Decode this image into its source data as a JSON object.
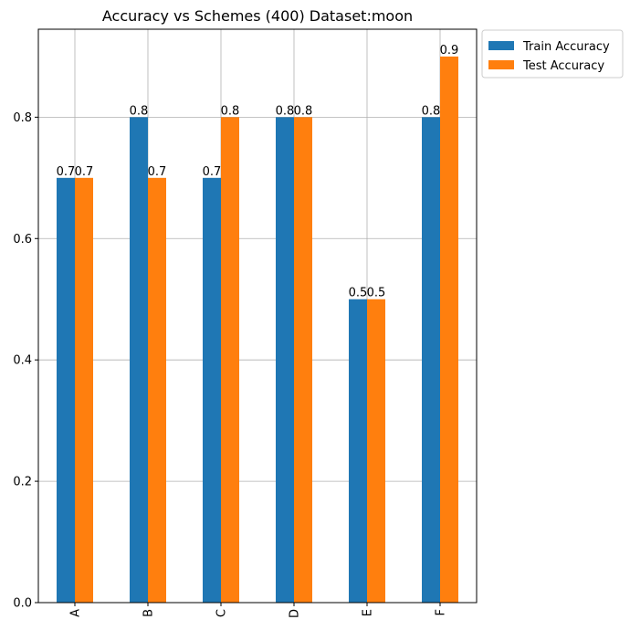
{
  "chart_data": {
    "type": "bar",
    "title": "Accuracy vs Schemes (400) Dataset:moon",
    "xlabel": "",
    "ylabel": "",
    "categories": [
      "A",
      "B",
      "C",
      "D",
      "E",
      "F"
    ],
    "series": [
      {
        "name": "Train Accuracy",
        "color": "#1f77b4",
        "values": [
          0.7,
          0.8,
          0.7,
          0.8,
          0.5,
          0.8
        ]
      },
      {
        "name": "Test Accuracy",
        "color": "#ff7f0e",
        "values": [
          0.7,
          0.7,
          0.8,
          0.8,
          0.5,
          0.9
        ]
      }
    ],
    "data_labels": [
      [
        "0.7",
        "0.8",
        "0.7",
        "0.8",
        "0.5",
        "0.8"
      ],
      [
        "0.7",
        "0.7",
        "0.8",
        "0.8",
        "0.5",
        "0.9"
      ]
    ],
    "ylim": [
      0,
      0.945
    ],
    "yticks": [
      0.0,
      0.2,
      0.4,
      0.6,
      0.8
    ],
    "ytick_labels": [
      "0.0",
      "0.2",
      "0.4",
      "0.6",
      "0.8"
    ],
    "grid": true,
    "legend_position": "outside-top-right",
    "x_tick_rotation": "vertical"
  }
}
